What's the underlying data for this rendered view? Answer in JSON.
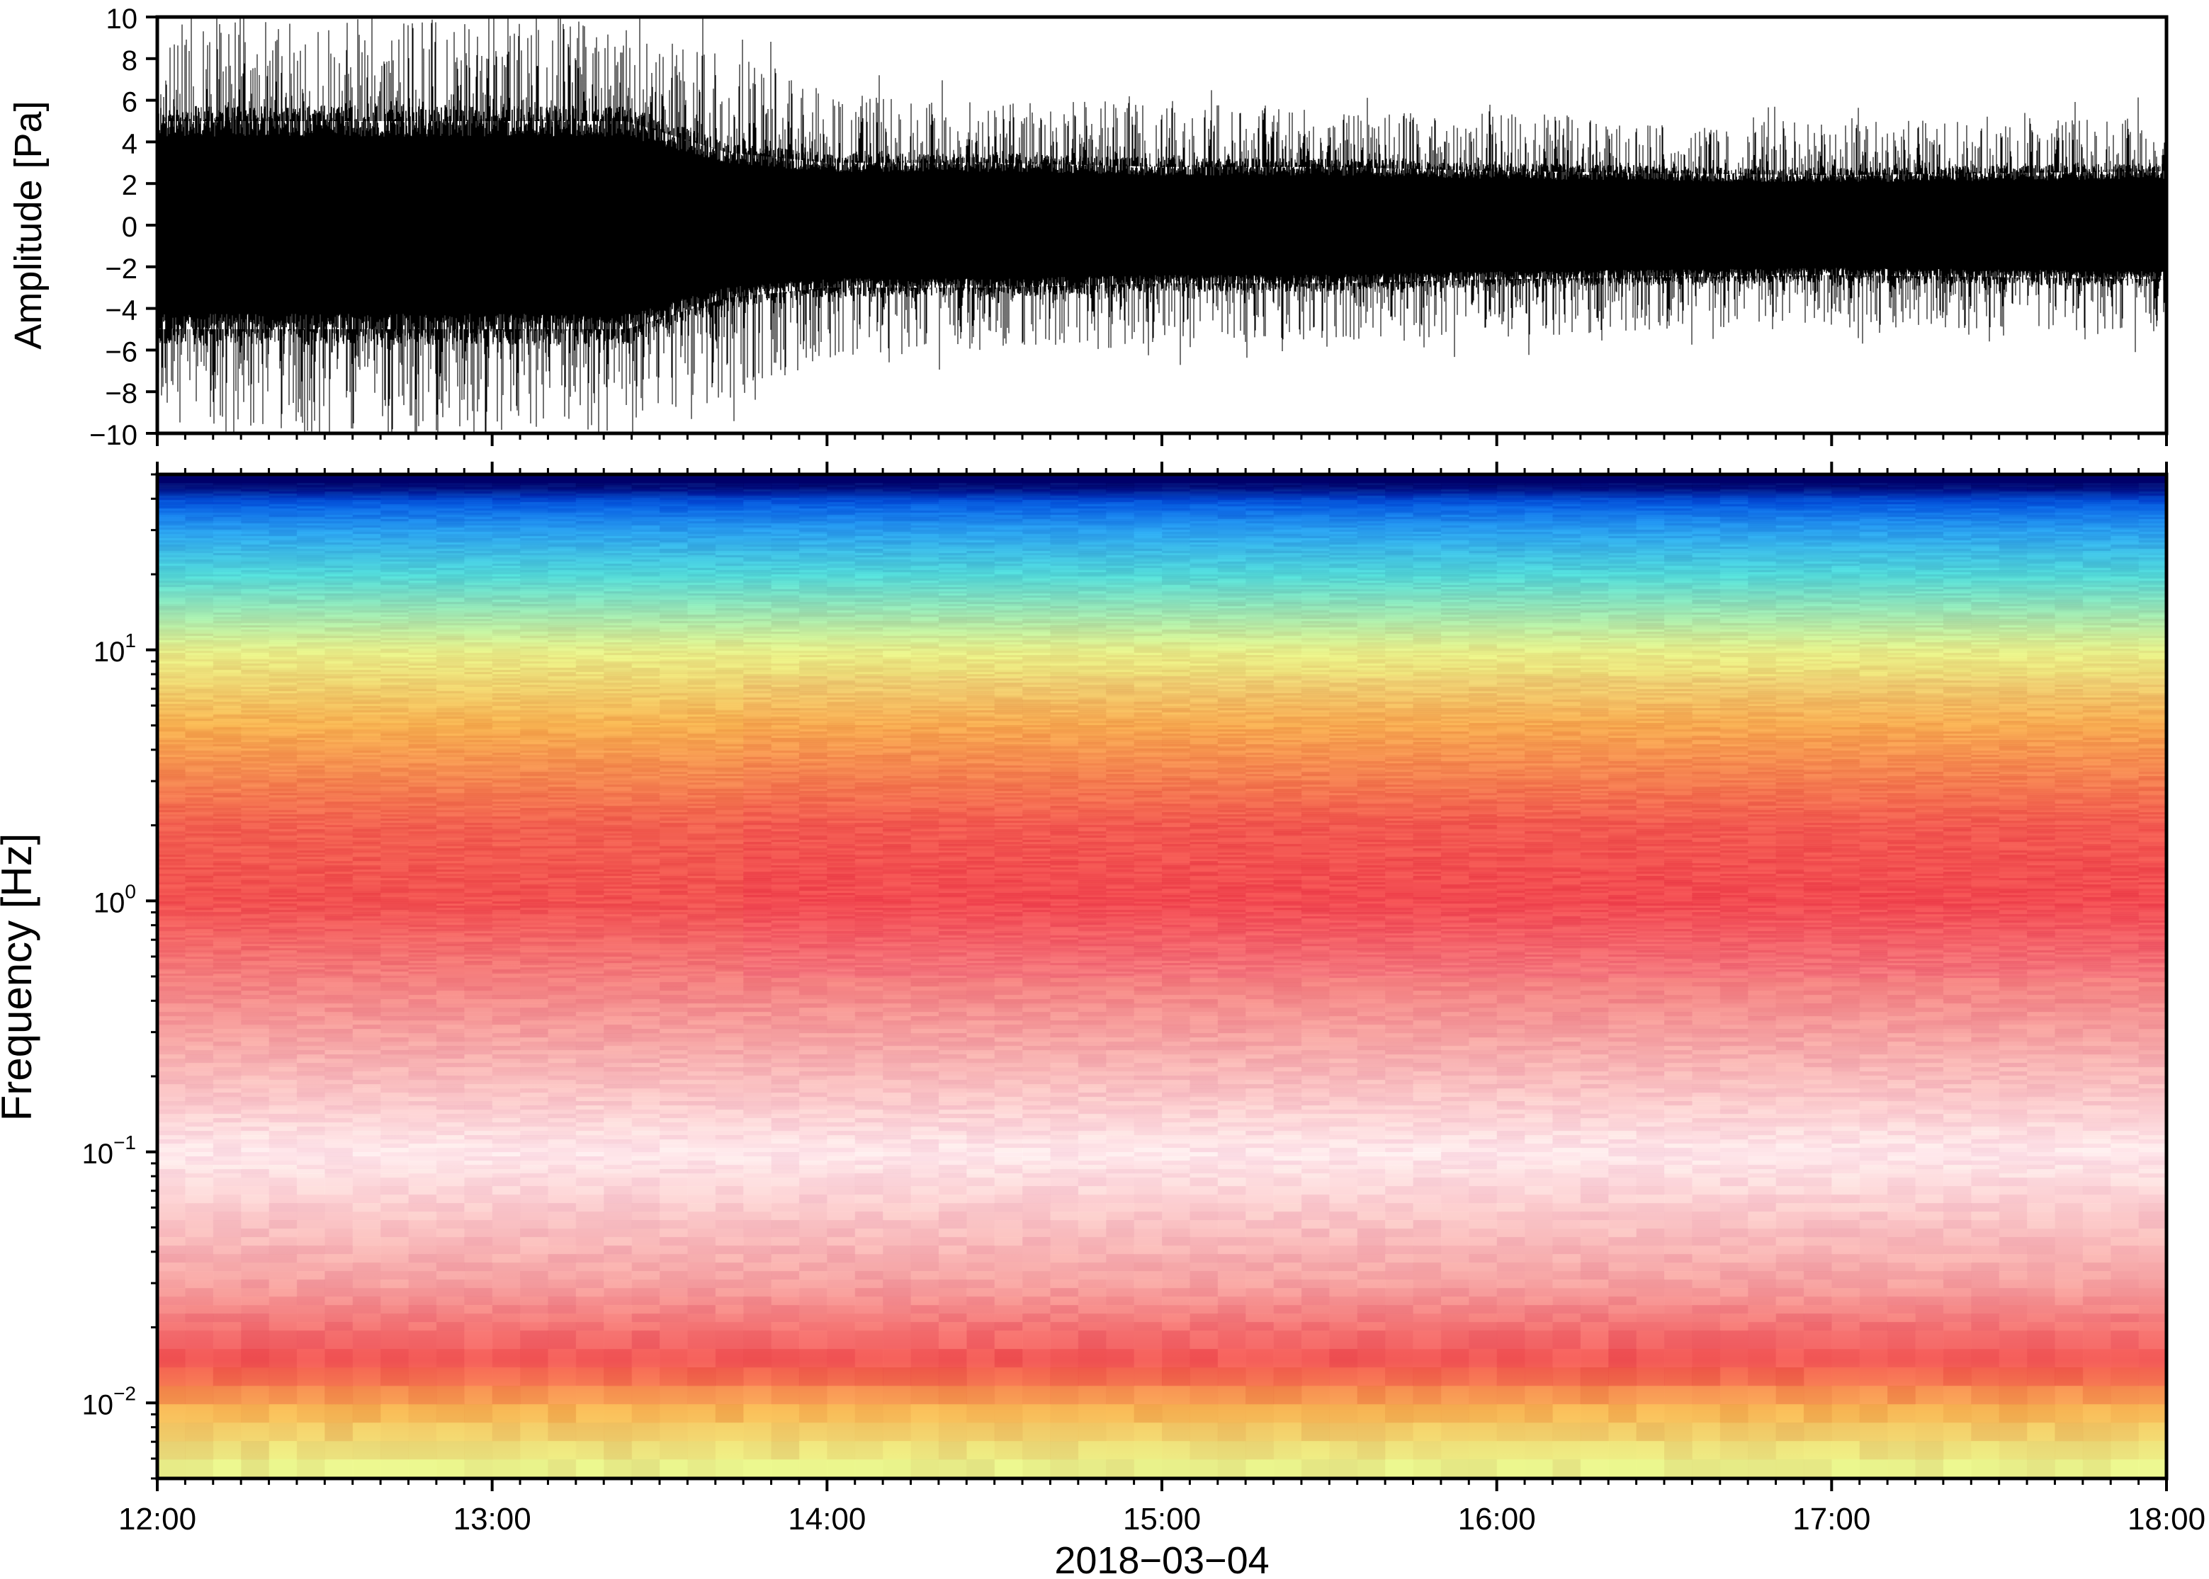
{
  "chart_data": [
    {
      "type": "line",
      "panel": "waveform",
      "ylabel": "Amplitude [Pa]",
      "ylim": [
        -10,
        10
      ],
      "yticks": [
        -10,
        -8,
        -6,
        -4,
        -2,
        0,
        2,
        4,
        6,
        8,
        10
      ],
      "ytick_labels": [
        "−10",
        "−8",
        "−6",
        "−4",
        "−2",
        "0",
        "2",
        "4",
        "6",
        "8",
        "10"
      ],
      "xlim": [
        "2018-03-04 12:00",
        "2018-03-04 18:00"
      ],
      "line_color": "#000000",
      "envelope": {
        "time": [
          "12:00",
          "12:30",
          "13:00",
          "13:24",
          "13:30",
          "13:42",
          "14:00",
          "14:30",
          "15:00",
          "15:30",
          "16:00",
          "16:30",
          "17:00",
          "17:30",
          "18:00"
        ],
        "upper_peak": [
          10,
          10,
          10,
          10,
          9,
          8.5,
          6.5,
          6,
          6,
          5.5,
          5.5,
          5,
          5,
          5,
          5.5
        ],
        "lower_peak": [
          -10,
          -10,
          -10,
          -10,
          -9,
          -8.5,
          -6.5,
          -6,
          -6,
          -5.5,
          -5.5,
          -5,
          -5,
          -5,
          -5.5
        ],
        "dense_upper": [
          5,
          5,
          5,
          5,
          4.5,
          3.5,
          3,
          3,
          2.8,
          2.8,
          2.6,
          2.5,
          2.4,
          2.5,
          2.6
        ],
        "dense_lower": [
          -5,
          -5,
          -5,
          -5,
          -4.5,
          -3.5,
          -3,
          -3,
          -2.8,
          -2.8,
          -2.6,
          -2.5,
          -2.4,
          -2.5,
          -2.6
        ]
      }
    },
    {
      "type": "heatmap",
      "panel": "spectrogram",
      "ylabel": "Frequency [Hz]",
      "yscale": "log",
      "ylim": [
        0.005,
        50
      ],
      "yticks": [
        0.01,
        0.1,
        1,
        10
      ],
      "ytick_labels": [
        {
          "base": "10",
          "exp": "−2"
        },
        {
          "base": "10",
          "exp": "−1"
        },
        {
          "base": "10",
          "exp": "0"
        },
        {
          "base": "10",
          "exp": "1"
        }
      ],
      "xlim": [
        "2018-03-04 12:00",
        "2018-03-04 18:00"
      ],
      "colormap": [
        "#00006a",
        "#0040d8",
        "#2aa0f0",
        "#52d8d8",
        "#a8ecb0",
        "#e8f08a",
        "#f7c050",
        "#f7a040",
        "#f25050",
        "#f5a0a0",
        "#ffe8ec"
      ],
      "frequency_profile": {
        "freq_hz": [
          45,
          40,
          30,
          20,
          10,
          5,
          2,
          1,
          0.3,
          0.1,
          0.03,
          0.015,
          0.01,
          0.006
        ],
        "color": [
          "#00006a",
          "#0050e0",
          "#2aa0f0",
          "#52d8d8",
          "#e8f08a",
          "#f7b050",
          "#f26050",
          "#f25050",
          "#f5a0a0",
          "#ffe8ec",
          "#f5a0a0",
          "#f25050",
          "#f7b050",
          "#e8f08a"
        ]
      },
      "notes": [
        "2018-03-04"
      ]
    }
  ],
  "xaxis": {
    "ticks": [
      "12:00",
      "13:00",
      "14:00",
      "15:00",
      "16:00",
      "17:00",
      "18:00"
    ],
    "label": "2018−03−04"
  }
}
